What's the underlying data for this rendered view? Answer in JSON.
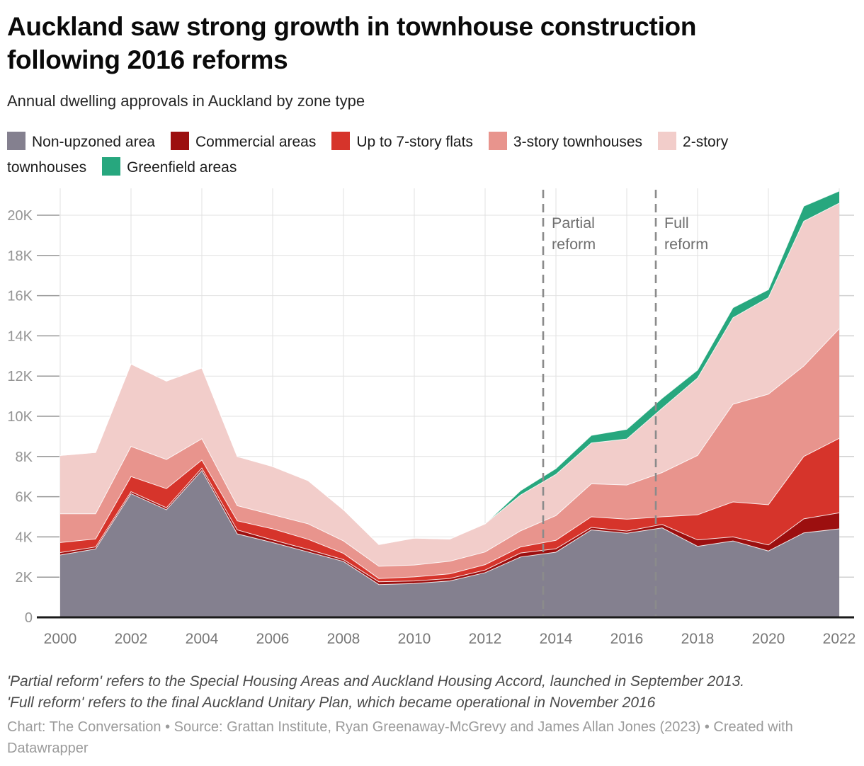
{
  "header": {
    "title": "Auckland saw strong growth in townhouse construction following 2016 reforms",
    "subtitle": "Annual dwelling approvals in Auckland by zone type"
  },
  "legend": {
    "items": [
      {
        "label": "Non-upzoned area",
        "color": "#84808f"
      },
      {
        "label": "Commercial areas",
        "color": "#9c0f0f"
      },
      {
        "label": "Up to 7-story flats",
        "color": "#d6342b"
      },
      {
        "label": "3-story townhouses",
        "color": "#e8948d"
      },
      {
        "label": "2-story townhouses",
        "color": "#f2cdca"
      },
      {
        "label": "Greenfield areas",
        "color": "#27a77e"
      }
    ]
  },
  "chart_data": {
    "type": "area",
    "stacked": true,
    "grid": true,
    "x": [
      2000,
      2001,
      2002,
      2003,
      2004,
      2005,
      2006,
      2007,
      2008,
      2009,
      2010,
      2011,
      2012,
      2013,
      2014,
      2015,
      2016,
      2017,
      2018,
      2019,
      2020,
      2021,
      2022
    ],
    "series": [
      {
        "name": "Non-upzoned area",
        "color": "#84808f",
        "values": [
          3100,
          3400,
          6150,
          5350,
          7300,
          4150,
          3720,
          3250,
          2780,
          1630,
          1680,
          1810,
          2220,
          3000,
          3240,
          4350,
          4180,
          4450,
          3530,
          3800,
          3300,
          4200,
          4400
        ]
      },
      {
        "name": "Commercial areas",
        "color": "#9c0f0f",
        "values": [
          120,
          100,
          100,
          100,
          120,
          200,
          130,
          130,
          90,
          140,
          130,
          120,
          130,
          200,
          170,
          120,
          110,
          170,
          320,
          200,
          300,
          700,
          800
        ]
      },
      {
        "name": "Up to 7-story flats",
        "color": "#d6342b",
        "values": [
          500,
          400,
          750,
          950,
          400,
          450,
          550,
          500,
          310,
          160,
          200,
          230,
          270,
          300,
          420,
          530,
          590,
          380,
          1250,
          1740,
          2000,
          3100,
          3700
        ]
      },
      {
        "name": "3-story townhouses",
        "color": "#e8948d",
        "values": [
          1430,
          1250,
          1500,
          1450,
          1060,
          750,
          700,
          770,
          620,
          610,
          590,
          630,
          630,
          800,
          1230,
          1640,
          1700,
          2200,
          2950,
          4860,
          5500,
          4500,
          5450
        ]
      },
      {
        "name": "2-story townhouses",
        "color": "#f2cdca",
        "values": [
          2900,
          3050,
          4100,
          3900,
          3520,
          2450,
          2400,
          2150,
          1550,
          1080,
          1340,
          1100,
          1400,
          1780,
          2050,
          2030,
          2290,
          3200,
          3850,
          4300,
          4800,
          7200,
          6250
        ]
      },
      {
        "name": "Greenfield areas",
        "color": "#27a77e",
        "values": [
          0,
          0,
          0,
          0,
          0,
          0,
          0,
          0,
          0,
          0,
          0,
          0,
          0,
          220,
          290,
          380,
          480,
          500,
          400,
          500,
          400,
          750,
          600
        ]
      }
    ],
    "annotations": [
      {
        "label": "Partial reform",
        "x": 2013.64
      },
      {
        "label": "Full reform",
        "x": 2016.82
      }
    ],
    "y_ticks": [
      {
        "value": 0,
        "label": "0"
      },
      {
        "value": 2000,
        "label": "2K"
      },
      {
        "value": 4000,
        "label": "4K"
      },
      {
        "value": 6000,
        "label": "6K"
      },
      {
        "value": 8000,
        "label": "8K"
      },
      {
        "value": 10000,
        "label": "10K"
      },
      {
        "value": 12000,
        "label": "12K"
      },
      {
        "value": 14000,
        "label": "14K"
      },
      {
        "value": 16000,
        "label": "16K"
      },
      {
        "value": 18000,
        "label": "18K"
      },
      {
        "value": 20000,
        "label": "20K"
      }
    ],
    "x_tick_labels": [
      "2000",
      "2002",
      "2004",
      "2006",
      "2008",
      "2010",
      "2012",
      "2014",
      "2016",
      "2018",
      "2020",
      "2022"
    ],
    "xlabel": "",
    "ylabel": "",
    "ylim": [
      0,
      21300
    ],
    "legend_position": "top"
  },
  "footnotes": {
    "line1": "'Partial reform' refers to the Special Housing Areas and Auckland Housing Accord, launched in September 2013.",
    "line2": "'Full reform' refers to the final Auckland Unitary Plan, which became operational in November 2016"
  },
  "attribution": "Chart: The Conversation • Source: Grattan Institute, Ryan Greenaway-McGrevy and James Allan Jones (2023) • Created with Datawrapper",
  "style": {
    "grid_color": "#e1e1e1",
    "axis_color": "#1a1a1a",
    "tick_label_color": "#949494",
    "x_label_color": "#787878",
    "annotation_color": "#6f6f6f",
    "dash_color": "#8b8b8b"
  }
}
